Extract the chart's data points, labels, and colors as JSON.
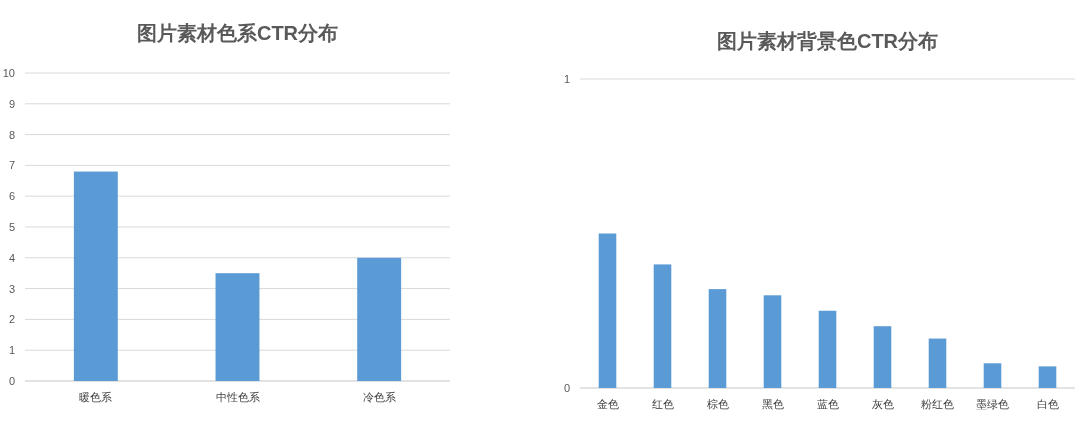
{
  "chart_data": [
    {
      "type": "bar",
      "title": "图片素材色系CTR分布",
      "categories": [
        "暖色系",
        "中性色系",
        "冷色系"
      ],
      "values": [
        6.8,
        3.5,
        4.0
      ],
      "color": "#5b9bd5",
      "ylim": [
        0,
        10
      ],
      "yticks": [
        0,
        1,
        2,
        3,
        4,
        5,
        6,
        7,
        8,
        9,
        10
      ],
      "grid": "y"
    },
    {
      "type": "bar",
      "title": "图片素材背景色CTR分布",
      "categories": [
        "金色",
        "红色",
        "棕色",
        "黑色",
        "蓝色",
        "灰色",
        "粉红色",
        "墨绿色",
        "白色"
      ],
      "values": [
        0.5,
        0.4,
        0.32,
        0.3,
        0.25,
        0.2,
        0.16,
        0.08,
        0.07
      ],
      "color": "#5b9bd5",
      "ylim": [
        0,
        1
      ],
      "yticks": [
        0,
        1
      ],
      "grid": "y"
    }
  ]
}
